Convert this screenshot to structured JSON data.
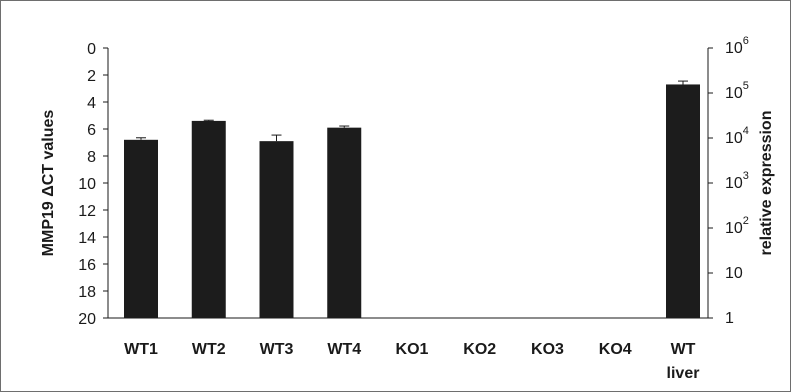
{
  "chart_data": {
    "type": "bar",
    "categories": [
      [
        "WT1"
      ],
      [
        "WT2"
      ],
      [
        "WT3"
      ],
      [
        "WT4"
      ],
      [
        "KO1"
      ],
      [
        "KO2"
      ],
      [
        "KO3"
      ],
      [
        "KO4"
      ],
      [
        "WT",
        "liver"
      ]
    ],
    "series": [
      {
        "values": [
          6.8,
          5.4,
          6.9,
          5.9,
          20,
          20,
          20,
          20,
          2.7
        ],
        "errors": [
          0.15,
          0.05,
          0.45,
          0.12,
          0,
          0,
          0,
          0,
          0.25
        ]
      }
    ],
    "ylabel": "MMP19 ΔCT values",
    "ylim": [
      0,
      20
    ],
    "y_inverted": true,
    "yticks": [
      "0",
      "2",
      "4",
      "6",
      "8",
      "10",
      "12",
      "14",
      "16",
      "18",
      "20"
    ],
    "y2label": "relative expression",
    "y2_scale": "log",
    "y2ticks": [
      {
        "base": "1",
        "exp": ""
      },
      {
        "base": "10",
        "exp": ""
      },
      {
        "base": "10",
        "exp": "2"
      },
      {
        "base": "10",
        "exp": "3"
      },
      {
        "base": "10",
        "exp": "4"
      },
      {
        "base": "10",
        "exp": "5"
      },
      {
        "base": "10",
        "exp": "6"
      }
    ],
    "grid": false,
    "bar_color": "#1c1c1c"
  }
}
